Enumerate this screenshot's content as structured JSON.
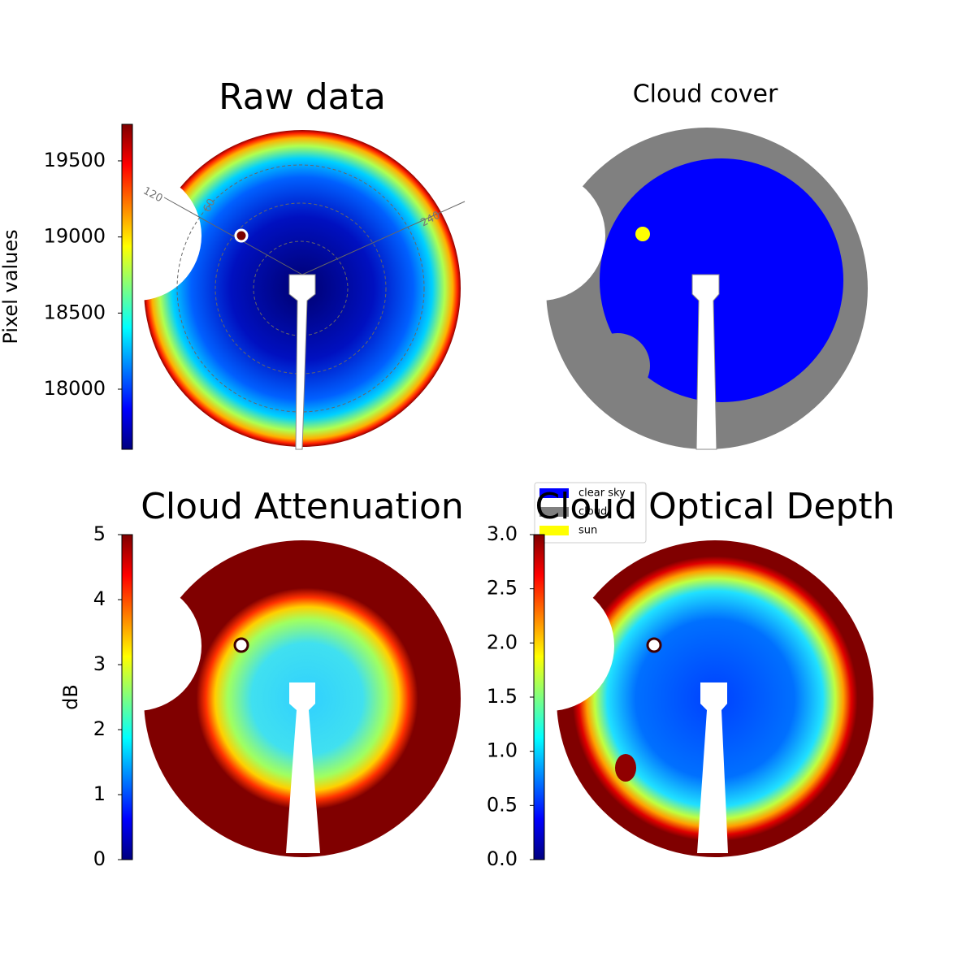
{
  "chart_data": [
    {
      "type": "image",
      "title": "Raw data",
      "colormap": "jet",
      "colorbar_label": "Pixel values",
      "clim": [
        17605,
        19740
      ],
      "cticks": [
        18000,
        18500,
        19000,
        19500
      ],
      "annotations": [
        "120",
        "60",
        "240"
      ]
    },
    {
      "type": "image",
      "title": "Cloud cover",
      "legend": [
        {
          "name": "clear sky",
          "color": "#0000ff"
        },
        {
          "name": "cloud",
          "color": "#808080"
        },
        {
          "name": "sun",
          "color": "#ffff00"
        }
      ]
    },
    {
      "type": "image",
      "title": "Cloud Attenuation",
      "colormap": "jet",
      "colorbar_label": "dB",
      "clim": [
        0,
        5
      ],
      "cticks": [
        0,
        1,
        2,
        3,
        4,
        5
      ]
    },
    {
      "type": "image",
      "title": "Cloud Optical Depth",
      "colormap": "jet",
      "clim": [
        0,
        3
      ],
      "cticks": [
        {
          "value": 0,
          "label": "0.0"
        },
        0.5,
        {
          "value": 1,
          "label": "1.0"
        },
        1.5,
        {
          "value": 2,
          "label": "2.0"
        },
        2.5,
        {
          "value": 3,
          "label": "3.0"
        }
      ]
    }
  ]
}
